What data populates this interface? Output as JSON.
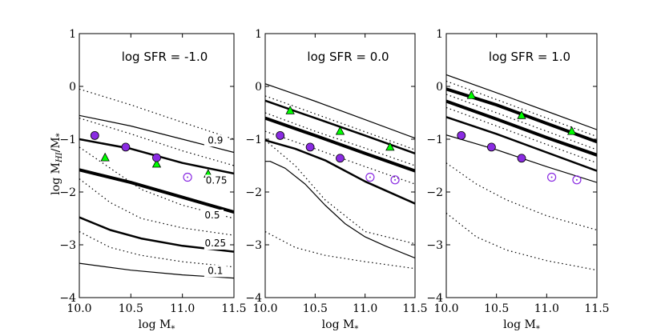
{
  "figure": {
    "ylabel": "log M_HI/M_*",
    "xlabel": "log M_*"
  },
  "chart_data": [
    {
      "type": "line",
      "title": "log SFR = -1.0",
      "xlabel": "log M_*",
      "ylabel": "log M_HI/M_*",
      "xlim": [
        10.0,
        11.5
      ],
      "ylim": [
        -4,
        1
      ],
      "xticks": [
        "10.0",
        "10.5",
        "11.0",
        "11.5"
      ],
      "yticks": [
        "1",
        "0",
        "−1",
        "−2",
        "−3",
        "−4"
      ],
      "curve_labels": [
        {
          "text": "0.9",
          "x": 11.32,
          "y": -1.08
        },
        {
          "text": "0.75",
          "x": 11.33,
          "y": -1.84
        },
        {
          "text": "0.5",
          "x": 11.29,
          "y": -2.5
        },
        {
          "text": "0.25",
          "x": 11.32,
          "y": -3.03
        },
        {
          "text": "0.1",
          "x": 11.32,
          "y": -3.55
        }
      ],
      "series": [
        {
          "name": "0.9",
          "style": "thin",
          "x": [
            10.0,
            10.5,
            11.0,
            11.5
          ],
          "y": [
            -0.55,
            -0.75,
            -1.0,
            -1.25
          ]
        },
        {
          "name": "0.75",
          "style": "medium",
          "x": [
            10.0,
            10.5,
            11.0,
            11.5
          ],
          "y": [
            -1.0,
            -1.18,
            -1.45,
            -1.65
          ]
        },
        {
          "name": "0.5",
          "style": "thick",
          "x": [
            10.0,
            10.5,
            11.0,
            11.5
          ],
          "y": [
            -1.58,
            -1.82,
            -2.1,
            -2.38
          ]
        },
        {
          "name": "0.25",
          "style": "medium",
          "x": [
            10.0,
            10.3,
            10.6,
            11.0,
            11.5
          ],
          "y": [
            -2.48,
            -2.72,
            -2.88,
            -3.02,
            -3.13
          ]
        },
        {
          "name": "0.1",
          "style": "thin",
          "x": [
            10.0,
            10.5,
            11.0,
            11.5
          ],
          "y": [
            -3.35,
            -3.48,
            -3.57,
            -3.63
          ]
        },
        {
          "name": "dotted-1",
          "style": "dotted",
          "x": [
            10.0,
            10.5,
            11.0,
            11.5
          ],
          "y": [
            -0.05,
            -0.35,
            -0.68,
            -1.0
          ]
        },
        {
          "name": "dotted-2",
          "style": "dotted",
          "x": [
            10.0,
            10.5,
            11.0,
            11.5
          ],
          "y": [
            -0.6,
            -0.9,
            -1.22,
            -1.5
          ]
        },
        {
          "name": "dotted-3",
          "style": "dotted",
          "x": [
            10.0,
            10.3,
            10.6,
            11.0,
            11.5
          ],
          "y": [
            -1.15,
            -1.55,
            -1.95,
            -2.25,
            -2.5
          ]
        },
        {
          "name": "dotted-4",
          "style": "dotted",
          "x": [
            10.0,
            10.3,
            10.6,
            11.0,
            11.5
          ],
          "y": [
            -1.75,
            -2.2,
            -2.5,
            -2.68,
            -2.82
          ]
        },
        {
          "name": "dotted-5",
          "style": "dotted",
          "x": [
            10.0,
            10.3,
            10.6,
            11.0,
            11.5
          ],
          "y": [
            -2.75,
            -3.05,
            -3.2,
            -3.32,
            -3.42
          ]
        }
      ],
      "points": {
        "purple_filled": {
          "x": [
            10.15,
            10.45,
            10.75
          ],
          "y": [
            -0.93,
            -1.15,
            -1.35
          ]
        },
        "green_triangle": {
          "x": [
            10.25,
            10.75,
            11.25
          ],
          "y": [
            -1.35,
            -1.47,
            -1.66
          ]
        },
        "purple_open": {
          "x": [
            11.05
          ],
          "y": [
            -1.72
          ]
        }
      }
    },
    {
      "type": "line",
      "title": "log SFR = 0.0",
      "xlabel": "log M_*",
      "ylabel": "",
      "xlim": [
        10.0,
        11.5
      ],
      "ylim": [
        -4,
        1
      ],
      "xticks": [
        "10.0",
        "10.5",
        "11.0",
        "11.5"
      ],
      "yticks": [
        "1",
        "0",
        "−1",
        "−2",
        "−3",
        "−4"
      ],
      "curve_labels": [],
      "series": [
        {
          "name": "0.9",
          "style": "thin",
          "x": [
            10.0,
            10.5,
            11.0,
            11.5
          ],
          "y": [
            0.05,
            -0.28,
            -0.63,
            -0.98
          ]
        },
        {
          "name": "0.75",
          "style": "medium",
          "x": [
            10.0,
            10.5,
            11.0,
            11.5
          ],
          "y": [
            -0.27,
            -0.6,
            -0.93,
            -1.27
          ]
        },
        {
          "name": "0.5",
          "style": "thick",
          "x": [
            10.0,
            10.5,
            11.0,
            11.5
          ],
          "y": [
            -0.6,
            -0.93,
            -1.27,
            -1.6
          ]
        },
        {
          "name": "0.25",
          "style": "medium",
          "x": [
            10.0,
            10.3,
            10.6,
            11.0,
            11.5
          ],
          "y": [
            -1.02,
            -1.18,
            -1.4,
            -1.8,
            -2.22
          ]
        },
        {
          "name": "0.1",
          "style": "thin",
          "x": [
            10.0,
            10.05,
            10.2,
            10.4,
            10.6,
            10.8,
            11.0,
            11.2,
            11.5
          ],
          "y": [
            -1.42,
            -1.42,
            -1.55,
            -1.85,
            -2.25,
            -2.6,
            -2.85,
            -3.02,
            -3.25
          ]
        },
        {
          "name": "dotted-1",
          "style": "dotted",
          "x": [
            10.0,
            10.5,
            11.0,
            11.5
          ],
          "y": [
            -0.18,
            -0.52,
            -0.86,
            -1.2
          ]
        },
        {
          "name": "dotted-2",
          "style": "dotted",
          "x": [
            10.0,
            10.5,
            11.0,
            11.5
          ],
          "y": [
            -0.5,
            -0.85,
            -1.17,
            -1.5
          ]
        },
        {
          "name": "dotted-3",
          "style": "dotted",
          "x": [
            10.0,
            10.5,
            11.0,
            11.5
          ],
          "y": [
            -0.85,
            -1.18,
            -1.52,
            -1.85
          ]
        },
        {
          "name": "dotted-4",
          "style": "dotted",
          "x": [
            10.0,
            10.3,
            10.6,
            11.0,
            11.5
          ],
          "y": [
            -1.02,
            -1.5,
            -2.15,
            -2.75,
            -2.98
          ]
        },
        {
          "name": "dotted-5",
          "style": "dotted",
          "x": [
            10.0,
            10.3,
            10.6,
            11.0,
            11.5
          ],
          "y": [
            -2.75,
            -3.05,
            -3.2,
            -3.32,
            -3.45
          ]
        }
      ],
      "points": {
        "purple_filled": {
          "x": [
            10.15,
            10.45,
            10.75
          ],
          "y": [
            -0.93,
            -1.15,
            -1.36
          ]
        },
        "green_triangle": {
          "x": [
            10.25,
            10.75,
            11.25
          ],
          "y": [
            -0.46,
            -0.85,
            -1.15
          ]
        },
        "purple_open": {
          "x": [
            11.05,
            11.3
          ],
          "y": [
            -1.72,
            -1.77
          ]
        }
      }
    },
    {
      "type": "line",
      "title": "log SFR = 1.0",
      "xlabel": "log M_*",
      "ylabel": "",
      "xlim": [
        10.0,
        11.5
      ],
      "ylim": [
        -4,
        1
      ],
      "xticks": [
        "10.0",
        "10.5",
        "11.0",
        "11.5"
      ],
      "yticks": [
        "1",
        "0",
        "−1",
        "−2",
        "−3",
        "−4"
      ],
      "curve_labels": [],
      "series": [
        {
          "name": "0.9",
          "style": "thin",
          "x": [
            10.0,
            10.5,
            11.0,
            11.5
          ],
          "y": [
            0.22,
            -0.12,
            -0.47,
            -0.82
          ]
        },
        {
          "name": "0.75",
          "style": "thick",
          "x": [
            10.0,
            10.5,
            11.0,
            11.5
          ],
          "y": [
            -0.05,
            -0.35,
            -0.7,
            -1.05
          ]
        },
        {
          "name": "0.5",
          "style": "thick",
          "x": [
            10.0,
            10.5,
            11.0,
            11.5
          ],
          "y": [
            -0.28,
            -0.62,
            -0.97,
            -1.3
          ]
        },
        {
          "name": "0.25",
          "style": "medium",
          "x": [
            10.0,
            10.5,
            11.0,
            11.5
          ],
          "y": [
            -0.58,
            -0.9,
            -1.25,
            -1.6
          ]
        },
        {
          "name": "0.1",
          "style": "thin",
          "x": [
            10.0,
            10.5,
            11.0,
            11.5
          ],
          "y": [
            -0.92,
            -1.2,
            -1.52,
            -1.82
          ]
        },
        {
          "name": "dotted-1",
          "style": "dotted",
          "x": [
            10.0,
            10.5,
            11.0,
            11.5
          ],
          "y": [
            0.1,
            -0.25,
            -0.6,
            -0.95
          ]
        },
        {
          "name": "dotted-2",
          "style": "dotted",
          "x": [
            10.0,
            10.5,
            11.0,
            11.5
          ],
          "y": [
            -0.15,
            -0.5,
            -0.85,
            -1.2
          ]
        },
        {
          "name": "dotted-3",
          "style": "dotted",
          "x": [
            10.0,
            10.5,
            11.0,
            11.5
          ],
          "y": [
            -0.4,
            -0.75,
            -1.1,
            -1.45
          ]
        },
        {
          "name": "dotted-4",
          "style": "dotted",
          "x": [
            10.0,
            10.3,
            10.6,
            11.0,
            11.5
          ],
          "y": [
            -1.45,
            -1.85,
            -2.15,
            -2.45,
            -2.72
          ]
        },
        {
          "name": "dotted-5",
          "style": "dotted",
          "x": [
            10.0,
            10.3,
            10.6,
            11.0,
            11.5
          ],
          "y": [
            -2.4,
            -2.85,
            -3.1,
            -3.3,
            -3.48
          ]
        }
      ],
      "points": {
        "purple_filled": {
          "x": [
            10.15,
            10.45,
            10.75
          ],
          "y": [
            -0.93,
            -1.15,
            -1.36
          ]
        },
        "green_triangle": {
          "x": [
            10.25,
            10.75,
            11.25
          ],
          "y": [
            -0.17,
            -0.55,
            -0.85
          ]
        },
        "purple_open": {
          "x": [
            11.05,
            11.3
          ],
          "y": [
            -1.72,
            -1.77
          ]
        }
      }
    }
  ],
  "colors": {
    "purple": "#8a2be2",
    "green": "#00ff00",
    "axis": "#000000"
  }
}
